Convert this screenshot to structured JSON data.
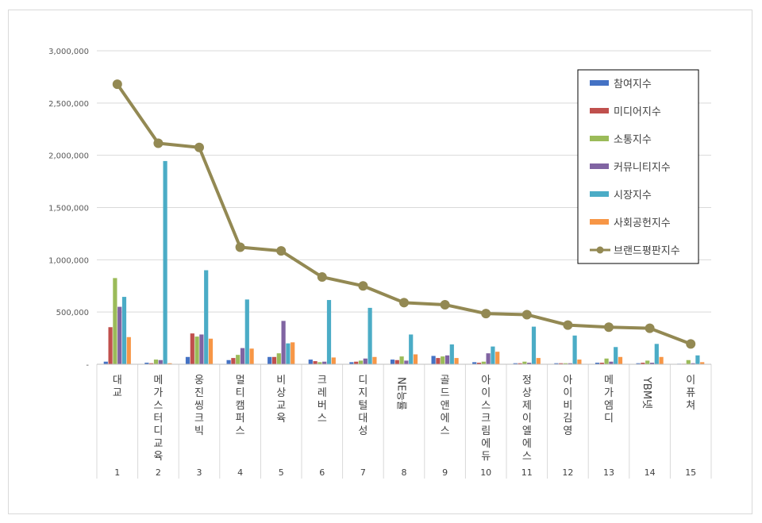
{
  "chart_data": {
    "type": "bar",
    "categories": [
      "대교",
      "메가스터디교육",
      "웅진씽크빅",
      "멀티캠퍼스",
      "비상교육",
      "크레버스",
      "디지털대성",
      "NE능률",
      "골드앤에스",
      "아이스크림에듀",
      "정상제이엘에스",
      "아이비김영",
      "메가엠디",
      "YBM넷",
      "이퓨쳐"
    ],
    "ranks": [
      "1",
      "2",
      "3",
      "4",
      "5",
      "6",
      "7",
      "8",
      "9",
      "10",
      "11",
      "12",
      "13",
      "14",
      "15"
    ],
    "ylim": [
      0,
      3000000
    ],
    "yticks": [
      0,
      500000,
      1000000,
      1500000,
      2000000,
      2500000,
      3000000
    ],
    "ytick_labels": [
      "-",
      "500,000",
      "1,000,000",
      "1,500,000",
      "2,000,000",
      "2,500,000",
      "3,000,000"
    ],
    "grid": true,
    "legend_position": "top-right",
    "series": [
      {
        "name": "참여지수",
        "kind": "bar",
        "color": "#4472c4",
        "values": [
          25000,
          15000,
          70000,
          40000,
          70000,
          45000,
          20000,
          45000,
          80000,
          20000,
          10000,
          10000,
          15000,
          10000,
          5000
        ]
      },
      {
        "name": "미디어지수",
        "kind": "bar",
        "color": "#c0504d",
        "values": [
          355000,
          10000,
          295000,
          60000,
          70000,
          30000,
          25000,
          40000,
          60000,
          15000,
          10000,
          10000,
          15000,
          15000,
          5000
        ]
      },
      {
        "name": "소통지수",
        "kind": "bar",
        "color": "#9bbb59",
        "values": [
          825000,
          45000,
          265000,
          90000,
          105000,
          20000,
          35000,
          75000,
          75000,
          25000,
          25000,
          10000,
          55000,
          35000,
          40000
        ]
      },
      {
        "name": "커뮤니티지수",
        "kind": "bar",
        "color": "#8064a2",
        "values": [
          550000,
          40000,
          285000,
          155000,
          415000,
          25000,
          55000,
          35000,
          85000,
          105000,
          15000,
          10000,
          25000,
          15000,
          10000
        ]
      },
      {
        "name": "시장지수",
        "kind": "bar",
        "color": "#4bacc6",
        "values": [
          645000,
          1945000,
          900000,
          620000,
          200000,
          615000,
          540000,
          285000,
          190000,
          170000,
          360000,
          275000,
          165000,
          195000,
          85000
        ]
      },
      {
        "name": "사회공헌지수",
        "kind": "bar",
        "color": "#f79646",
        "values": [
          260000,
          10000,
          245000,
          150000,
          210000,
          65000,
          70000,
          95000,
          60000,
          120000,
          60000,
          45000,
          70000,
          70000,
          20000
        ]
      },
      {
        "name": "브랜드평판지수",
        "kind": "line",
        "color": "#938953",
        "values": [
          2680000,
          2115000,
          2075000,
          1120000,
          1085000,
          835000,
          750000,
          590000,
          570000,
          485000,
          475000,
          375000,
          355000,
          345000,
          195000
        ]
      }
    ]
  }
}
